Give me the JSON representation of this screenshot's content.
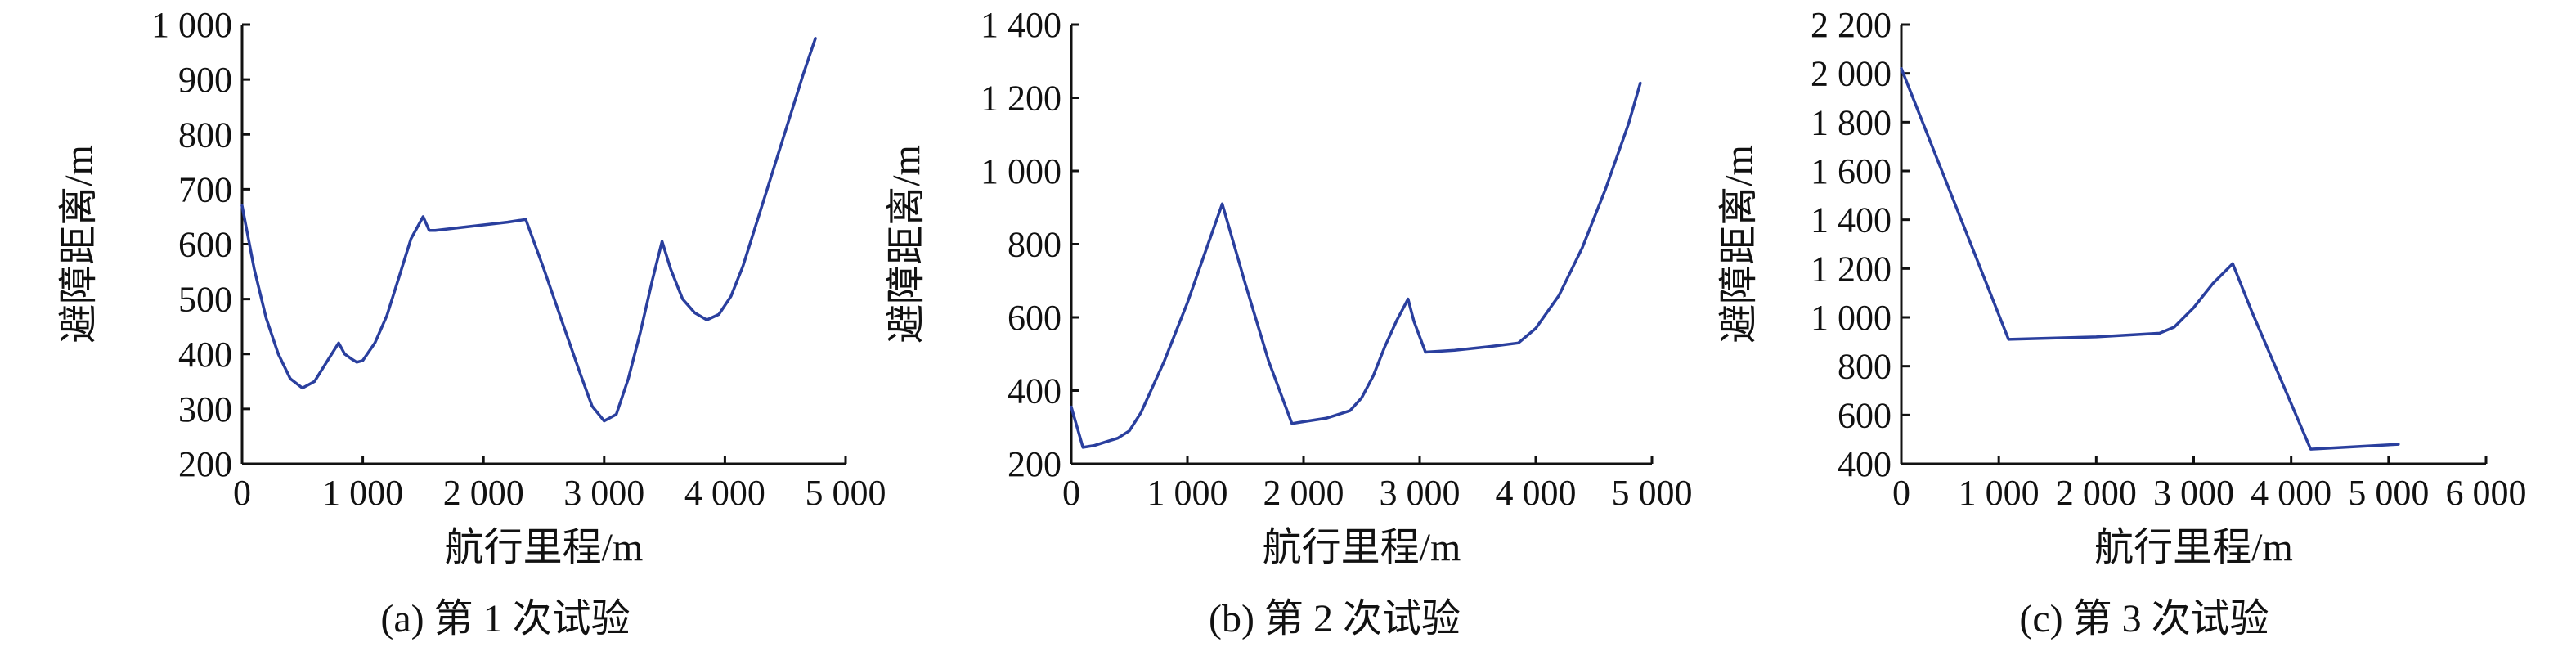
{
  "colors": {
    "line": "#2a3f9e",
    "axis": "#111111"
  },
  "chart_data": [
    {
      "type": "line",
      "caption": "(a) 第 1 次试验",
      "xlabel": "航行里程/m",
      "ylabel": "避障距离/m",
      "xlim": [
        0,
        5000
      ],
      "ylim": [
        200,
        1000
      ],
      "xticks": [
        0,
        1000,
        2000,
        3000,
        4000,
        5000
      ],
      "xtick_labels": [
        "0",
        "1 000",
        "2 000",
        "3 000",
        "4 000",
        "5 000"
      ],
      "yticks": [
        200,
        300,
        400,
        500,
        600,
        700,
        800,
        900,
        1000
      ],
      "ytick_labels": [
        "200",
        "300",
        "400",
        "500",
        "600",
        "700",
        "800",
        "900",
        "1 000"
      ],
      "series": [
        {
          "x": [
            0,
            100,
            200,
            300,
            400,
            500,
            600,
            700,
            800,
            850,
            900,
            950,
            1000,
            1100,
            1200,
            1300,
            1400,
            1500,
            1550,
            1600,
            1800,
            2000,
            2200,
            2350,
            2500,
            2650,
            2800,
            2900,
            3000,
            3100,
            3200,
            3300,
            3400,
            3480,
            3550,
            3650,
            3750,
            3850,
            3950,
            4050,
            4150,
            4250,
            4350,
            4450,
            4550,
            4650,
            4750
          ],
          "y": [
            670,
            555,
            465,
            400,
            355,
            338,
            350,
            385,
            420,
            400,
            392,
            385,
            388,
            420,
            470,
            540,
            610,
            650,
            625,
            625,
            630,
            635,
            640,
            645,
            555,
            460,
            365,
            305,
            278,
            290,
            355,
            440,
            535,
            605,
            555,
            500,
            475,
            462,
            472,
            505,
            560,
            630,
            700,
            770,
            840,
            910,
            975
          ]
        }
      ]
    },
    {
      "type": "line",
      "caption": "(b) 第 2 次试验",
      "xlabel": "航行里程/m",
      "ylabel": "避障距离/m",
      "xlim": [
        0,
        5000
      ],
      "ylim": [
        200,
        1400
      ],
      "xticks": [
        0,
        1000,
        2000,
        3000,
        4000,
        5000
      ],
      "xtick_labels": [
        "0",
        "1 000",
        "2 000",
        "3 000",
        "4 000",
        "5 000"
      ],
      "yticks": [
        200,
        400,
        600,
        800,
        1000,
        1200,
        1400
      ],
      "ytick_labels": [
        "200",
        "400",
        "600",
        "800",
        "1 000",
        "1 200",
        "1 400"
      ],
      "series": [
        {
          "x": [
            0,
            100,
            200,
            300,
            400,
            500,
            600,
            800,
            1000,
            1200,
            1300,
            1500,
            1700,
            1900,
            2000,
            2200,
            2400,
            2500,
            2600,
            2700,
            2800,
            2900,
            2950,
            3050,
            3300,
            3600,
            3850,
            4000,
            4200,
            4400,
            4600,
            4800,
            4900
          ],
          "y": [
            355,
            245,
            250,
            260,
            270,
            290,
            340,
            480,
            640,
            820,
            910,
            690,
            480,
            310,
            315,
            325,
            345,
            380,
            440,
            520,
            590,
            650,
            590,
            505,
            510,
            520,
            530,
            570,
            660,
            790,
            950,
            1130,
            1240
          ]
        }
      ]
    },
    {
      "type": "line",
      "caption": "(c) 第 3 次试验",
      "xlabel": "航行里程/m",
      "ylabel": "避障距离/m",
      "xlim": [
        0,
        6000
      ],
      "ylim": [
        400,
        2200
      ],
      "xticks": [
        0,
        1000,
        2000,
        3000,
        4000,
        5000,
        6000
      ],
      "xtick_labels": [
        "0",
        "1 000",
        "2 000",
        "3 000",
        "4 000",
        "5 000",
        "6 000"
      ],
      "yticks": [
        400,
        600,
        800,
        1000,
        1200,
        1400,
        1600,
        1800,
        2000,
        2200
      ],
      "ytick_labels": [
        "400",
        "600",
        "800",
        "1 000",
        "1 200",
        "1 400",
        "1 600",
        "1 800",
        "2 000",
        "2 200"
      ],
      "series": [
        {
          "x": [
            0,
            1100,
            2000,
            2650,
            2800,
            3000,
            3200,
            3400,
            3600,
            4200,
            5100
          ],
          "y": [
            2020,
            910,
            920,
            935,
            960,
            1040,
            1140,
            1220,
            1020,
            460,
            480
          ]
        }
      ]
    }
  ]
}
